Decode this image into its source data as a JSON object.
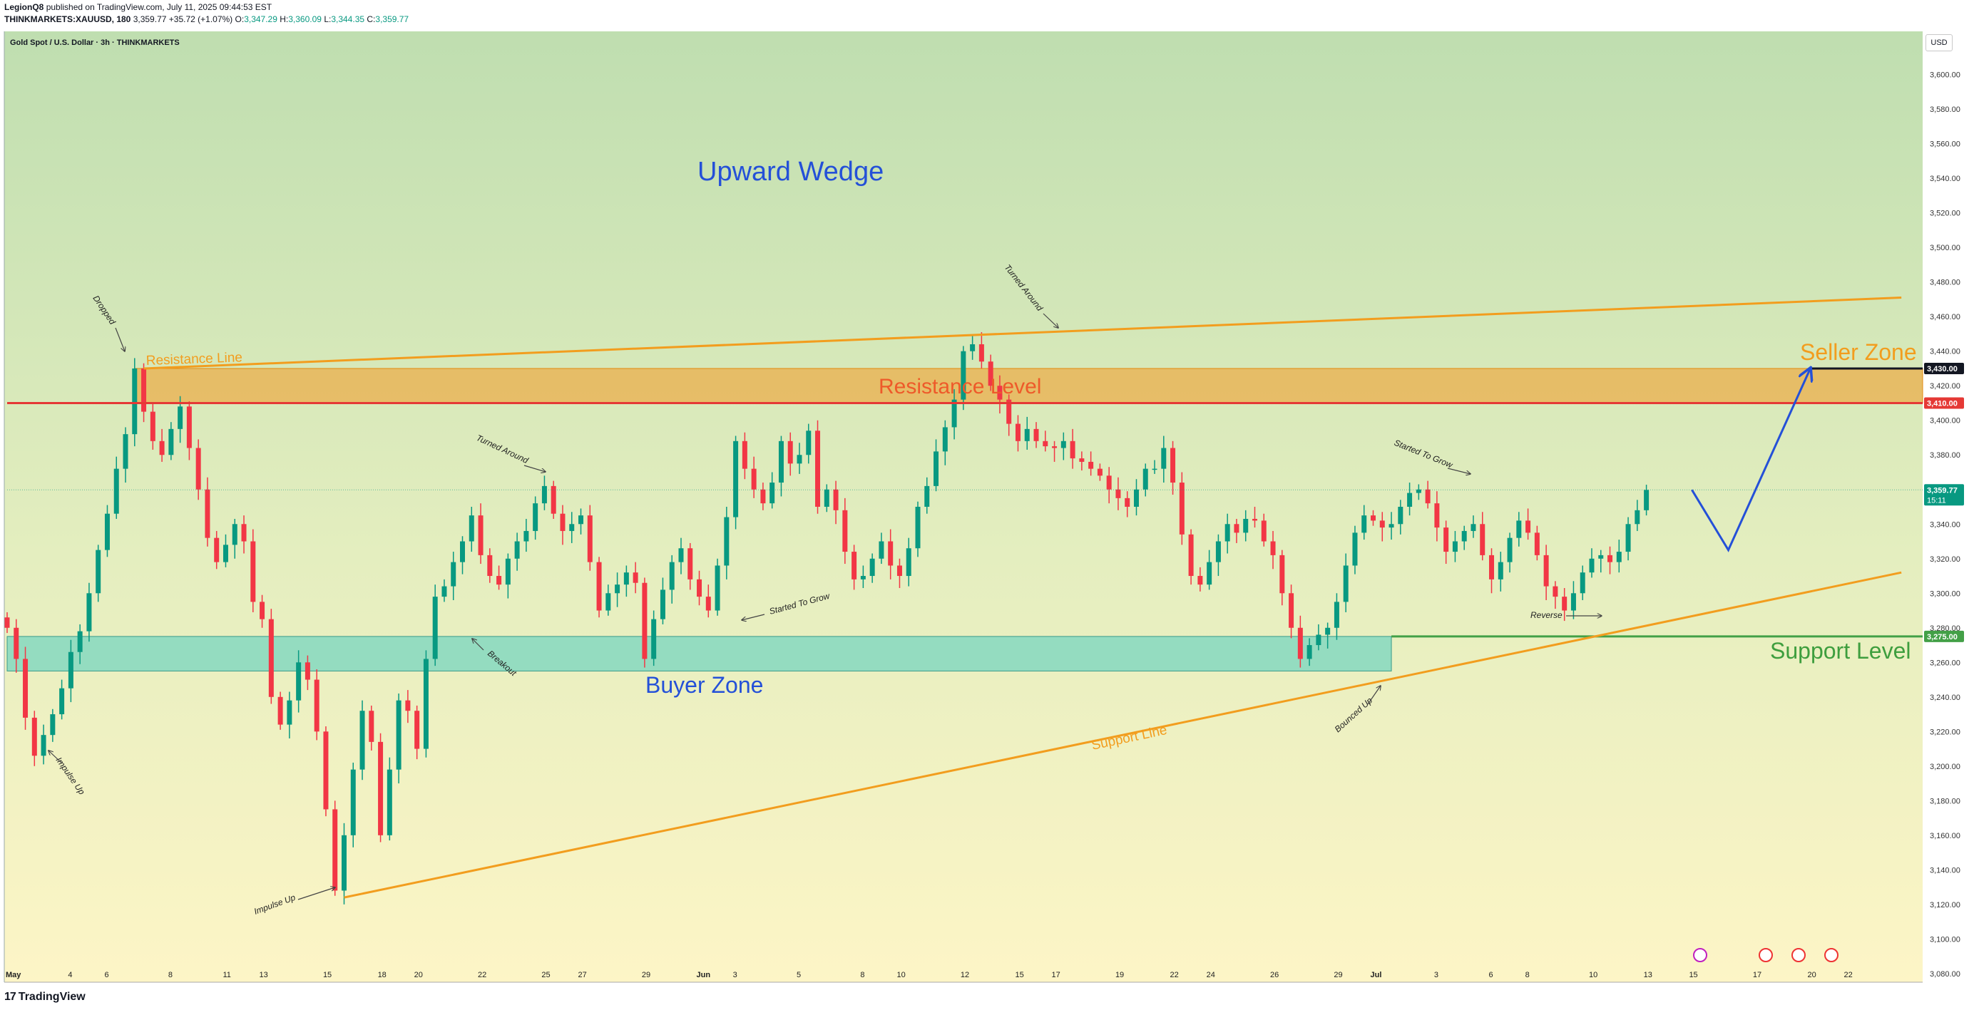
{
  "header": {
    "author": "LegionQ8",
    "published_text": "published on TradingView.com, July 11, 2025 09:44:53 EST",
    "symbol": "THINKMARKETS:XAUUSD, 180",
    "last": "3,359.77",
    "change": "+35.72 (+1.07%)",
    "o_label": "O:",
    "o": "3,347.29",
    "h_label": "H:",
    "h": "3,360.09",
    "l_label": "L:",
    "l": "3,344.35",
    "c_label": "C:",
    "c": "3,359.77"
  },
  "chart_title": "Gold Spot / U.S. Dollar · 3h · THINKMARKETS",
  "currency": "USD",
  "footer": {
    "logo": "17",
    "brand": "TradingView"
  },
  "chart_data": {
    "type": "candlestick",
    "title": "Upward Wedge",
    "ylim": [
      3075,
      3625
    ],
    "y_ticks": [
      "3,080.00",
      "3,100.00",
      "3,120.00",
      "3,140.00",
      "3,160.00",
      "3,180.00",
      "3,200.00",
      "3,220.00",
      "3,240.00",
      "3,260.00",
      "3,280.00",
      "3,300.00",
      "3,320.00",
      "3,340.00",
      "3,360.00",
      "3,380.00",
      "3,400.00",
      "3,420.00",
      "3,440.00",
      "3,460.00",
      "3,480.00",
      "3,500.00",
      "3,520.00",
      "3,540.00",
      "3,560.00",
      "3,580.00",
      "3,600.00"
    ],
    "x_ticks": [
      {
        "label": "May",
        "i": 0
      },
      {
        "label": "4",
        "i": 7
      },
      {
        "label": "6",
        "i": 11
      },
      {
        "label": "8",
        "i": 18
      },
      {
        "label": "11",
        "i": 24
      },
      {
        "label": "13",
        "i": 28
      },
      {
        "label": "15",
        "i": 35
      },
      {
        "label": "18",
        "i": 41
      },
      {
        "label": "20",
        "i": 45
      },
      {
        "label": "22",
        "i": 52
      },
      {
        "label": "25",
        "i": 59
      },
      {
        "label": "27",
        "i": 63
      },
      {
        "label": "29",
        "i": 70
      },
      {
        "label": "Jun",
        "i": 76
      },
      {
        "label": "3",
        "i": 80
      },
      {
        "label": "5",
        "i": 87
      },
      {
        "label": "8",
        "i": 94
      },
      {
        "label": "10",
        "i": 98
      },
      {
        "label": "12",
        "i": 105
      },
      {
        "label": "15",
        "i": 111
      },
      {
        "label": "17",
        "i": 115
      },
      {
        "label": "19",
        "i": 122
      },
      {
        "label": "22",
        "i": 128
      },
      {
        "label": "24",
        "i": 132
      },
      {
        "label": "26",
        "i": 139
      },
      {
        "label": "29",
        "i": 146
      },
      {
        "label": "Jul",
        "i": 150
      },
      {
        "label": "3",
        "i": 157
      },
      {
        "label": "6",
        "i": 163
      },
      {
        "label": "8",
        "i": 167
      },
      {
        "label": "10",
        "i": 174
      },
      {
        "label": "13",
        "i": 180
      },
      {
        "label": "15",
        "i": 185
      },
      {
        "label": "17",
        "i": 192
      },
      {
        "label": "20",
        "i": 198
      },
      {
        "label": "22",
        "i": 202
      }
    ],
    "closes": [
      3280,
      3262,
      3228,
      3206,
      3218,
      3230,
      3245,
      3266,
      3278,
      3300,
      3325,
      3346,
      3372,
      3392,
      3430,
      3405,
      3388,
      3380,
      3395,
      3408,
      3384,
      3360,
      3332,
      3318,
      3328,
      3340,
      3330,
      3295,
      3285,
      3240,
      3224,
      3238,
      3260,
      3250,
      3220,
      3175,
      3128,
      3160,
      3198,
      3232,
      3214,
      3160,
      3198,
      3238,
      3232,
      3210,
      3262,
      3298,
      3304,
      3318,
      3330,
      3345,
      3322,
      3310,
      3305,
      3320,
      3330,
      3336,
      3352,
      3362,
      3346,
      3336,
      3340,
      3345,
      3318,
      3290,
      3300,
      3305,
      3312,
      3306,
      3262,
      3285,
      3302,
      3318,
      3326,
      3308,
      3298,
      3290,
      3316,
      3344,
      3388,
      3372,
      3360,
      3352,
      3364,
      3388,
      3375,
      3380,
      3394,
      3350,
      3360,
      3348,
      3324,
      3308,
      3310,
      3320,
      3330,
      3316,
      3310,
      3326,
      3350,
      3362,
      3382,
      3396,
      3412,
      3440,
      3444,
      3434,
      3420,
      3412,
      3398,
      3388,
      3395,
      3388,
      3385,
      3384,
      3388,
      3378,
      3376,
      3372,
      3368,
      3360,
      3355,
      3350,
      3360,
      3372,
      3372,
      3384,
      3364,
      3334,
      3310,
      3305,
      3318,
      3330,
      3340,
      3335,
      3343,
      3342,
      3330,
      3322,
      3300,
      3280,
      3262,
      3270,
      3276,
      3280,
      3295,
      3316,
      3335,
      3345,
      3342,
      3338,
      3340,
      3350,
      3358,
      3360,
      3352,
      3338,
      3324,
      3330,
      3336,
      3340,
      3322,
      3308,
      3318,
      3332,
      3342,
      3335,
      3322,
      3304,
      3298,
      3290,
      3300,
      3312,
      3320,
      3322,
      3318,
      3324,
      3340,
      3348,
      3359.77
    ],
    "forecast": [
      {
        "i": 185,
        "v": 3359.77
      },
      {
        "i": 189,
        "v": 3325
      },
      {
        "i": 198,
        "v": 3430
      }
    ],
    "zones": [
      {
        "name": "Resistance Level",
        "label": "Resistance Level",
        "from_i": 14,
        "to": "right",
        "low": 3410,
        "high": 3430,
        "color": "#f0a030"
      },
      {
        "name": "Buyer Zone",
        "label": "Buyer Zone",
        "from_i": 0,
        "to_i": 152,
        "low": 3255,
        "high": 3275,
        "color": "#5fd0c0"
      }
    ],
    "levels": [
      {
        "name": "resistance",
        "value": 3410,
        "color": "#e53935",
        "label": "3,410.00",
        "from_i": 0
      },
      {
        "name": "seller",
        "value": 3430,
        "color": "#131722",
        "label": "3,430.00",
        "from_i": 198
      },
      {
        "name": "support",
        "value": 3275,
        "color": "#43a047",
        "label": "3,275.00",
        "from_i": 152
      }
    ],
    "trendlines": [
      {
        "name": "Resistance Line",
        "label": "Resistance Line",
        "x1": 15,
        "y1": 3430,
        "x2": 208,
        "y2": 3471,
        "color": "#f29d1e"
      },
      {
        "name": "Support Line",
        "label": "Support Line",
        "x1": 37,
        "y1": 3124,
        "x2": 208,
        "y2": 3312,
        "color": "#f29d1e"
      }
    ],
    "labels": {
      "title": "Upward Wedge",
      "resistance_level": "Resistance Level",
      "seller_zone": "Seller Zone",
      "support_level": "Support Level",
      "buyer_zone": "Buyer Zone",
      "resistance_line": "Resistance Line",
      "support_line": "Support Line"
    },
    "annotations": [
      {
        "text": "Dropped",
        "i": 10,
        "v": 3480,
        "angle": 55
      },
      {
        "text": "Impulse Up",
        "i": 7,
        "v": 3185,
        "angle": 55
      },
      {
        "text": "Impulse Up",
        "i": 30,
        "v": 3115,
        "angle": -20
      },
      {
        "text": "Breakout",
        "i": 53,
        "v": 3260,
        "angle": 40
      },
      {
        "text": "Turned Around",
        "i": 54,
        "v": 3387,
        "angle": 25
      },
      {
        "text": "Buyer Zone arrow",
        "i": 0,
        "v": 0,
        "angle": 0,
        "hidden": true
      },
      {
        "text": "Started To Grow",
        "i": 86,
        "v": 3291,
        "angle": -15
      },
      {
        "text": "Turned Around",
        "i": 112,
        "v": 3497,
        "angle": 50
      },
      {
        "text": "Started To Grow",
        "i": 155,
        "v": 3382,
        "angle": 22
      },
      {
        "text": "Reverse",
        "i": 167,
        "v": 3284,
        "angle": 0
      },
      {
        "text": "Bounced Up",
        "i": 146,
        "v": 3230,
        "angle": -40
      }
    ],
    "price_badges": [
      {
        "label": "3,430.00",
        "value": 3430,
        "color": "#131722"
      },
      {
        "label": "3,410.00",
        "value": 3410,
        "color": "#e53935"
      },
      {
        "label": "3,359.77",
        "value": 3359.77,
        "color": "#089981",
        "sub": "15:11"
      },
      {
        "label": "3,275.00",
        "value": 3275,
        "color": "#43a047"
      }
    ],
    "grid": false,
    "legend": "none",
    "colors": {
      "up": "#089981",
      "down": "#f23645"
    }
  }
}
